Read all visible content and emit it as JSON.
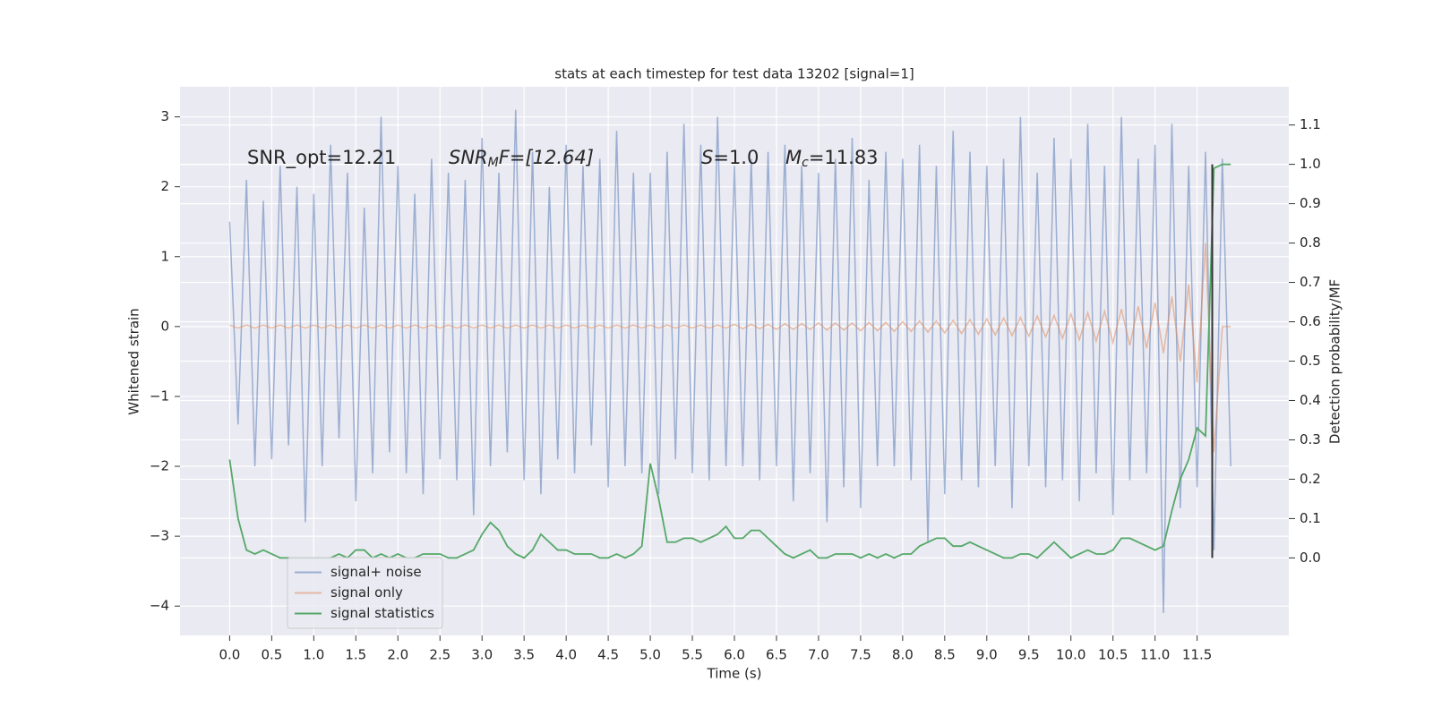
{
  "chart_data": {
    "type": "line",
    "title": "stats at each timestep for test data 13202 [signal=1]",
    "xlabel": "Time (s)",
    "ylabel": "Whitened strain",
    "y2label": "Detection probability/MF",
    "annotations": [
      [
        "SNR_opt=12.21"
      ],
      [
        "SNR",
        "M",
        "F=[12.64]"
      ],
      [
        "S",
        "=1.0"
      ],
      [
        "M",
        "c",
        "=11.83"
      ]
    ],
    "grid": true,
    "legend": "lower left",
    "xlim": [
      -0.59,
      12.59
    ],
    "ylim": [
      -4.42,
      3.43
    ],
    "y2lim": [
      -0.197,
      1.197
    ],
    "xticks": [
      {
        "value": 0,
        "label": "0.0"
      },
      {
        "value": 0.5,
        "label": "0.5"
      },
      {
        "value": 1,
        "label": "1.0"
      },
      {
        "value": 1.5,
        "label": "1.5"
      },
      {
        "value": 2,
        "label": "2.0"
      },
      {
        "value": 2.5,
        "label": "2.5"
      },
      {
        "value": 3,
        "label": "3.0"
      },
      {
        "value": 3.5,
        "label": "3.5"
      },
      {
        "value": 4,
        "label": "4.0"
      },
      {
        "value": 4.5,
        "label": "4.5"
      },
      {
        "value": 5,
        "label": "5.0"
      },
      {
        "value": 5.5,
        "label": "5.5"
      },
      {
        "value": 6,
        "label": "6.0"
      },
      {
        "value": 6.5,
        "label": "6.5"
      },
      {
        "value": 7,
        "label": "7.0"
      },
      {
        "value": 7.5,
        "label": "7.5"
      },
      {
        "value": 8,
        "label": "8.0"
      },
      {
        "value": 8.5,
        "label": "8.5"
      },
      {
        "value": 9,
        "label": "9.0"
      },
      {
        "value": 9.5,
        "label": "9.5"
      },
      {
        "value": 10,
        "label": "10.0"
      },
      {
        "value": 10.5,
        "label": "10.5"
      },
      {
        "value": 11,
        "label": "11.0"
      },
      {
        "value": 11.5,
        "label": "11.5"
      }
    ],
    "yticks": [
      {
        "value": -4,
        "label": "−4"
      },
      {
        "value": -3,
        "label": "−3"
      },
      {
        "value": -2,
        "label": "−2"
      },
      {
        "value": -1,
        "label": "−1"
      },
      0,
      1,
      2,
      3
    ],
    "y2ticks": [
      {
        "value": 0,
        "label": "0.0"
      },
      {
        "value": 0.1,
        "label": "0.1"
      },
      {
        "value": 0.2,
        "label": "0.2"
      },
      {
        "value": 0.3,
        "label": "0.3"
      },
      {
        "value": 0.4,
        "label": "0.4"
      },
      {
        "value": 0.5,
        "label": "0.5"
      },
      {
        "value": 0.6,
        "label": "0.6"
      },
      {
        "value": 0.7,
        "label": "0.7"
      },
      {
        "value": 0.8,
        "label": "0.8"
      },
      {
        "value": 0.9,
        "label": "0.9"
      },
      {
        "value": 1,
        "label": "1.0"
      },
      {
        "value": 1.1,
        "label": "1.1"
      }
    ],
    "x": [
      0,
      0.1,
      0.2,
      0.3,
      0.4,
      0.5,
      0.6,
      0.7,
      0.8,
      0.9,
      1,
      1.1,
      1.2,
      1.3,
      1.4,
      1.5,
      1.6,
      1.7,
      1.8,
      1.9,
      2,
      2.1,
      2.2,
      2.3,
      2.4,
      2.5,
      2.6,
      2.7,
      2.8,
      2.9,
      3,
      3.1,
      3.2,
      3.3,
      3.4,
      3.5,
      3.6,
      3.7,
      3.8,
      3.9,
      4,
      4.1,
      4.2,
      4.3,
      4.4,
      4.5,
      4.6,
      4.7,
      4.8,
      4.9,
      5,
      5.1,
      5.2,
      5.3,
      5.4,
      5.5,
      5.6,
      5.7,
      5.8,
      5.9,
      6,
      6.1,
      6.2,
      6.3,
      6.4,
      6.5,
      6.6,
      6.7,
      6.8,
      6.9,
      7,
      7.1,
      7.2,
      7.3,
      7.4,
      7.5,
      7.6,
      7.7,
      7.8,
      7.9,
      8,
      8.1,
      8.2,
      8.3,
      8.4,
      8.5,
      8.6,
      8.7,
      8.8,
      8.9,
      9,
      9.1,
      9.2,
      9.3,
      9.4,
      9.5,
      9.6,
      9.7,
      9.8,
      9.9,
      10,
      10.1,
      10.2,
      10.3,
      10.4,
      10.5,
      10.6,
      10.7,
      10.8,
      10.9,
      11,
      11.1,
      11.2,
      11.3,
      11.4,
      11.5,
      11.6,
      11.7,
      11.8,
      11.9
    ],
    "series": [
      {
        "name": "signal+ noise",
        "color": "#4c72b0",
        "alpha": 0.5,
        "axis": "y",
        "values": [
          1.5,
          -1.4,
          2.1,
          -2.0,
          1.8,
          -1.9,
          2.3,
          -1.7,
          2.0,
          -2.8,
          1.9,
          -2.0,
          2.6,
          -1.6,
          2.2,
          -2.5,
          1.7,
          -2.1,
          3.0,
          -1.8,
          2.3,
          -2.1,
          1.9,
          -2.4,
          2.4,
          -1.9,
          2.2,
          -2.2,
          2.1,
          -2.7,
          2.7,
          -2.0,
          2.2,
          -1.8,
          3.1,
          -2.2,
          2.5,
          -2.4,
          2.0,
          -1.9,
          2.6,
          -2.1,
          2.3,
          -1.7,
          2.4,
          -2.3,
          2.8,
          -2.0,
          2.2,
          -2.1,
          2.2,
          -2.4,
          2.5,
          -1.9,
          2.9,
          -2.1,
          2.6,
          -2.2,
          3.0,
          -2.0,
          2.3,
          -2.0,
          2.4,
          -2.2,
          2.5,
          -2.0,
          2.6,
          -2.5,
          2.3,
          -2.1,
          2.2,
          -2.8,
          2.4,
          -2.3,
          2.7,
          -2.6,
          2.1,
          -2.0,
          2.5,
          -2.0,
          2.4,
          -2.2,
          2.6,
          -3.1,
          2.3,
          -2.4,
          2.8,
          -2.2,
          2.5,
          -2.3,
          2.3,
          -2.0,
          2.4,
          -2.6,
          3.0,
          -2.0,
          2.2,
          -2.3,
          2.7,
          -2.2,
          2.4,
          -2.5,
          2.9,
          -2.1,
          2.3,
          -2.7,
          3.0,
          -2.2,
          2.4,
          -2.1,
          2.6,
          -4.1,
          2.9,
          -2.6,
          2.3,
          -2.3,
          2.5,
          -3.2,
          2.4,
          -2.0
        ]
      },
      {
        "name": "signal only",
        "color": "#dd8452",
        "alpha": 0.5,
        "axis": "y",
        "values": [
          0.02,
          -0.02,
          0.02,
          -0.02,
          0.02,
          -0.02,
          0.02,
          -0.02,
          0.02,
          -0.02,
          0.02,
          -0.02,
          0.02,
          -0.02,
          0.02,
          -0.02,
          0.02,
          -0.02,
          0.02,
          -0.02,
          0.02,
          -0.02,
          0.02,
          -0.02,
          0.02,
          -0.02,
          0.02,
          -0.02,
          0.02,
          -0.02,
          0.02,
          -0.02,
          0.02,
          -0.02,
          0.02,
          -0.02,
          0.02,
          -0.02,
          0.02,
          -0.02,
          0.02,
          -0.02,
          0.02,
          -0.02,
          0.02,
          -0.02,
          0.02,
          -0.02,
          0.02,
          -0.02,
          0.02,
          -0.02,
          0.02,
          -0.02,
          0.02,
          -0.02,
          0.02,
          -0.02,
          0.02,
          -0.02,
          0.03,
          -0.03,
          0.03,
          -0.03,
          0.03,
          -0.04,
          0.04,
          -0.04,
          0.04,
          -0.04,
          0.05,
          -0.05,
          0.05,
          -0.05,
          0.05,
          -0.06,
          0.06,
          -0.06,
          0.06,
          -0.07,
          0.07,
          -0.07,
          0.08,
          -0.08,
          0.08,
          -0.09,
          0.09,
          -0.1,
          0.1,
          -0.11,
          0.11,
          -0.12,
          0.12,
          -0.13,
          0.13,
          -0.14,
          0.15,
          -0.15,
          0.16,
          -0.17,
          0.18,
          -0.19,
          0.2,
          -0.21,
          0.22,
          -0.23,
          0.25,
          -0.27,
          0.29,
          -0.31,
          0.34,
          -0.38,
          0.43,
          -0.5,
          0.6,
          -0.8,
          1.2,
          -1.8,
          0,
          0
        ]
      },
      {
        "name": "signal statistics",
        "color": "#55a868",
        "alpha": 1,
        "axis": "y2",
        "values": [
          0.25,
          0.1,
          0.02,
          0.01,
          0.02,
          0.01,
          0,
          0,
          0,
          0,
          0,
          0,
          0,
          0.01,
          0,
          0.02,
          0.02,
          0,
          0.01,
          0,
          0.01,
          0,
          0,
          0.01,
          0.01,
          0.01,
          0,
          0,
          0.01,
          0.02,
          0.06,
          0.09,
          0.07,
          0.03,
          0.01,
          0,
          0.02,
          0.06,
          0.04,
          0.02,
          0.02,
          0.01,
          0.01,
          0.01,
          0,
          0,
          0.01,
          0,
          0.01,
          0.03,
          0.24,
          0.15,
          0.04,
          0.04,
          0.05,
          0.05,
          0.04,
          0.05,
          0.06,
          0.08,
          0.05,
          0.05,
          0.07,
          0.07,
          0.05,
          0.03,
          0.01,
          0,
          0.01,
          0.02,
          0,
          0,
          0.01,
          0.01,
          0.01,
          0,
          0.01,
          0,
          0.01,
          0,
          0.01,
          0.01,
          0.03,
          0.04,
          0.05,
          0.05,
          0.03,
          0.03,
          0.04,
          0.03,
          0.02,
          0.01,
          0,
          0,
          0.01,
          0.01,
          0,
          0.02,
          0.04,
          0.02,
          0,
          0.01,
          0.02,
          0.01,
          0.01,
          0.02,
          0.05,
          0.05,
          0.04,
          0.03,
          0.02,
          0.03,
          0.12,
          0.2,
          0.25,
          0.33,
          0.31,
          0.99,
          1,
          1
        ]
      }
    ],
    "vline": {
      "x": 11.68,
      "y2": [
        0,
        1
      ],
      "color": "#333333"
    }
  }
}
